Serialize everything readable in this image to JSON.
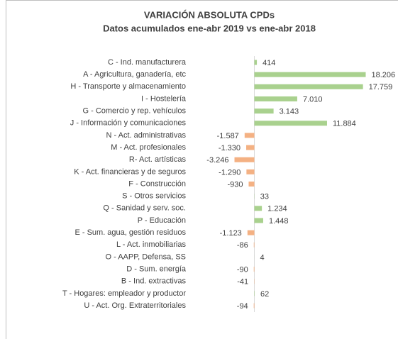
{
  "chart_data": {
    "type": "bar",
    "orientation": "horizontal",
    "title": "VARIACIÓN ABSOLUTA CPDs",
    "subtitle": "Datos acumulados ene-abr 2019 vs ene-abr 2018",
    "categories": [
      "C - Ind. manufacturera",
      "A - Agricultura, ganadería, etc",
      "H - Transporte y almacenamiento",
      "I - Hostelería",
      "G - Comercio y rep. vehículos",
      "J - Información y comunicaciones",
      "N - Act. administrativas",
      "M - Act. profesionales",
      "R- Act. artísticas",
      "K - Act. financieras y de seguros",
      "F - Construcción",
      "S - Otros servicios",
      "Q - Sanidad y serv. soc.",
      "P - Educación",
      "E - Sum. agua, gestión residuos",
      "L - Act. inmobiliarias",
      "O - AAPP, Defensa, SS",
      "D - Sum. energía",
      "B - Ind. extractivas",
      "T - Hogares: empleador y productor",
      "U - Act. Org. Extraterritoriales"
    ],
    "values": [
      414,
      18206,
      17759,
      7010,
      3143,
      11884,
      -1587,
      -1330,
      -3246,
      -1290,
      -930,
      33,
      1234,
      1448,
      -1123,
      -86,
      4,
      -90,
      -41,
      62,
      -94
    ],
    "value_labels": [
      "414",
      "18.206",
      "17.759",
      "7.010",
      "3.143",
      "11.884",
      "-1.587",
      "-1.330",
      "-3.246",
      "-1.290",
      "-930",
      "33",
      "1.234",
      "1.448",
      "-1.123",
      "-86",
      "4",
      "-90",
      "-41",
      "62",
      "-94"
    ],
    "positive_color": "#a9d18e",
    "negative_color": "#f4b183"
  }
}
